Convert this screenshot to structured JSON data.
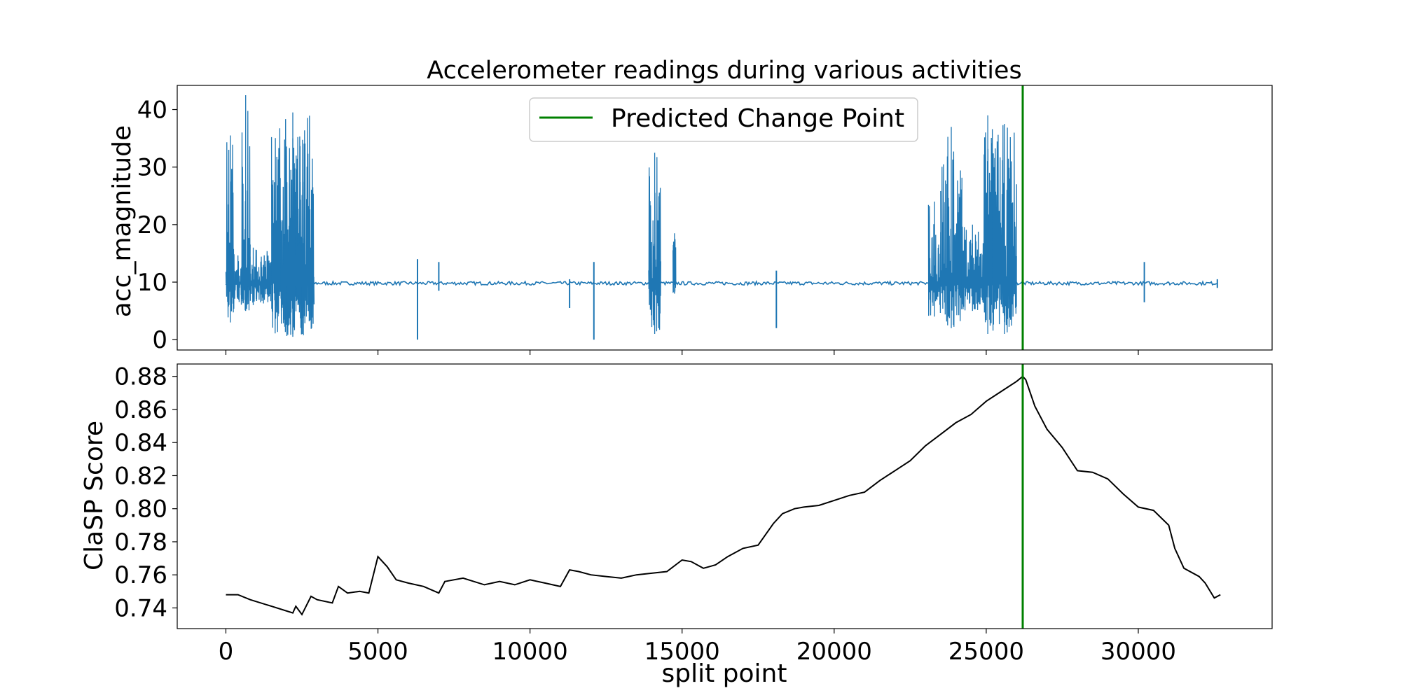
{
  "chart_data": [
    {
      "type": "line",
      "title": "Accelerometer readings during various activities",
      "xlabel": "",
      "ylabel": "acc_magnitude",
      "xlim": [
        -1600,
        34400
      ],
      "ylim": [
        -1.8,
        44.2
      ],
      "xticks": [
        0,
        5000,
        10000,
        15000,
        20000,
        25000,
        30000
      ],
      "yticks": [
        0,
        10,
        20,
        30,
        40
      ],
      "ytick_labels": [
        "0",
        "10",
        "20",
        "30",
        "40"
      ],
      "grid": false,
      "legend_position": "top-center",
      "series_color": "#1f77b4",
      "baseline": 9.8,
      "bursts": [
        {
          "start": 0,
          "end": 300,
          "min": 3,
          "max": 35.5
        },
        {
          "start": 300,
          "end": 1500,
          "min": 6,
          "max": 16
        },
        {
          "start": 500,
          "end": 800,
          "min": 5,
          "max": 42.5
        },
        {
          "start": 1500,
          "end": 2900,
          "min": 0.5,
          "max": 39.5
        },
        {
          "start": 1800,
          "end": 2600,
          "min": 1,
          "max": 35
        },
        {
          "start": 13900,
          "end": 14300,
          "min": 1,
          "max": 32.5
        },
        {
          "start": 14700,
          "end": 14800,
          "min": 8,
          "max": 18.5
        },
        {
          "start": 23100,
          "end": 23500,
          "min": 4,
          "max": 24
        },
        {
          "start": 23500,
          "end": 24200,
          "min": 2,
          "max": 37
        },
        {
          "start": 24200,
          "end": 24900,
          "min": 5,
          "max": 20
        },
        {
          "start": 24900,
          "end": 25200,
          "min": 1,
          "max": 39
        },
        {
          "start": 25200,
          "end": 26000,
          "min": 1,
          "max": 37.5
        }
      ],
      "spikes": [
        {
          "x": 6300,
          "min": 0,
          "max": 14
        },
        {
          "x": 7000,
          "min": 8.5,
          "max": 13.5
        },
        {
          "x": 11300,
          "min": 5.5,
          "max": 10.5
        },
        {
          "x": 12100,
          "min": 0,
          "max": 13.5
        },
        {
          "x": 18100,
          "min": 2,
          "max": 12
        },
        {
          "x": 30200,
          "min": 6.5,
          "max": 13.5
        },
        {
          "x": 32600,
          "min": 9,
          "max": 10.5
        }
      ],
      "x_end": 32600
    },
    {
      "type": "line",
      "title": "",
      "xlabel": "split point",
      "ylabel": "ClaSP Score",
      "xlim": [
        -1600,
        34400
      ],
      "ylim": [
        0.7275,
        0.8875
      ],
      "xticks": [
        0,
        5000,
        10000,
        15000,
        20000,
        25000,
        30000
      ],
      "xtick_labels": [
        "0",
        "5000",
        "10000",
        "15000",
        "20000",
        "25000",
        "30000"
      ],
      "yticks": [
        0.74,
        0.76,
        0.78,
        0.8,
        0.82,
        0.84,
        0.86,
        0.88
      ],
      "ytick_labels": [
        "0.74",
        "0.76",
        "0.78",
        "0.80",
        "0.82",
        "0.84",
        "0.86",
        "0.88"
      ],
      "grid": false,
      "series_color": "#000000",
      "x": [
        0,
        400,
        800,
        1500,
        2200,
        2300,
        2500,
        2800,
        3000,
        3500,
        3700,
        4000,
        4400,
        4700,
        5000,
        5300,
        5600,
        6000,
        6500,
        7000,
        7200,
        7800,
        8500,
        9000,
        9500,
        10000,
        10500,
        11000,
        11300,
        11600,
        12000,
        12500,
        13000,
        13500,
        14000,
        14500,
        15000,
        15300,
        15700,
        16100,
        16500,
        17000,
        17500,
        18000,
        18300,
        18700,
        19000,
        19500,
        20000,
        20500,
        21000,
        21500,
        22000,
        22500,
        23000,
        23500,
        24000,
        24500,
        25000,
        25500,
        26000,
        26200,
        26300,
        26600,
        27000,
        27500,
        28000,
        28500,
        29000,
        29500,
        30000,
        30500,
        31000,
        31200,
        31500,
        32000,
        32200,
        32500,
        32700
      ],
      "y": [
        0.748,
        0.748,
        0.745,
        0.741,
        0.737,
        0.741,
        0.736,
        0.747,
        0.745,
        0.743,
        0.753,
        0.749,
        0.75,
        0.749,
        0.771,
        0.765,
        0.757,
        0.755,
        0.753,
        0.749,
        0.756,
        0.758,
        0.754,
        0.756,
        0.754,
        0.757,
        0.755,
        0.753,
        0.763,
        0.762,
        0.76,
        0.759,
        0.758,
        0.76,
        0.761,
        0.762,
        0.769,
        0.768,
        0.764,
        0.766,
        0.771,
        0.776,
        0.778,
        0.791,
        0.797,
        0.8,
        0.801,
        0.802,
        0.805,
        0.808,
        0.81,
        0.817,
        0.823,
        0.829,
        0.838,
        0.845,
        0.852,
        0.857,
        0.865,
        0.871,
        0.877,
        0.88,
        0.878,
        0.862,
        0.848,
        0.837,
        0.823,
        0.822,
        0.818,
        0.809,
        0.801,
        0.799,
        0.79,
        0.776,
        0.764,
        0.759,
        0.755,
        0.746,
        0.748
      ]
    }
  ],
  "change_point": {
    "x": 26200,
    "label": "Predicted Change Point",
    "color": "#008000"
  }
}
